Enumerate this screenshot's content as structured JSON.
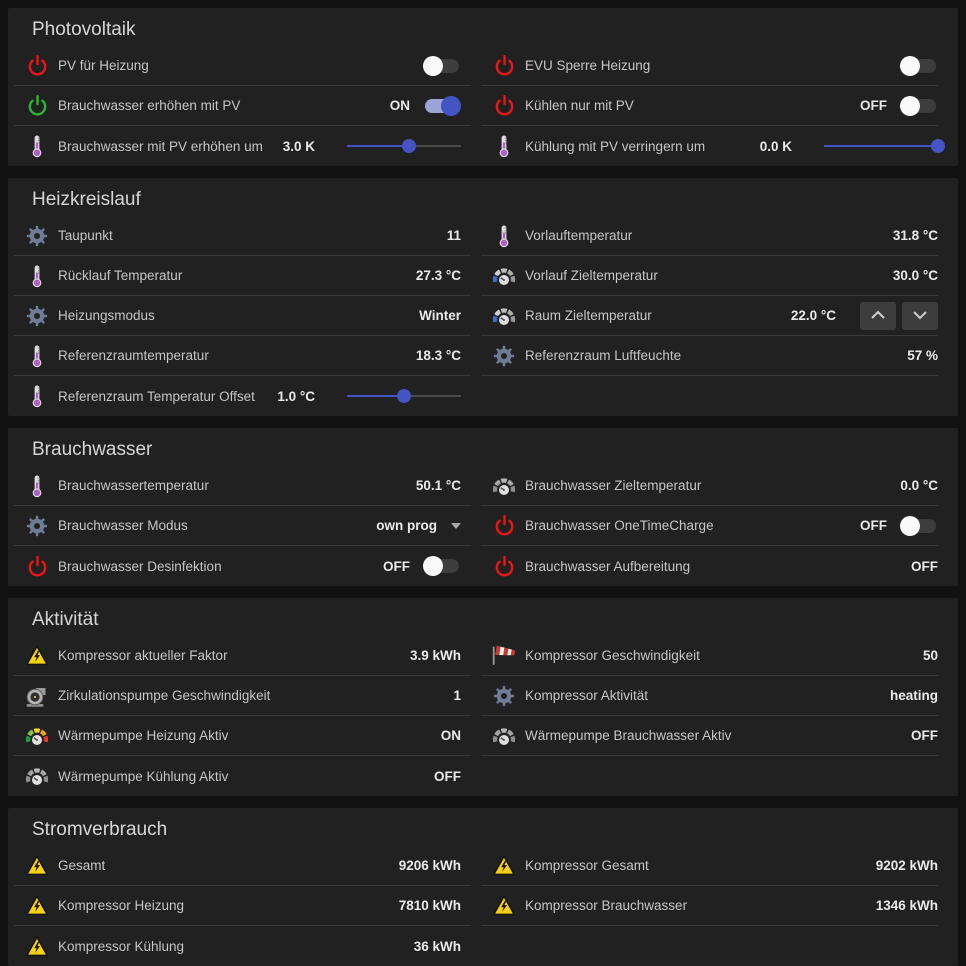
{
  "theme": {
    "page_bg": "#111111",
    "card_bg": "#212121",
    "divider": "#3a3a3a",
    "accent_blue": "#4454c3",
    "toggle_on_track": "#9aa4d6",
    "power_red": "#ed1515",
    "power_green": "#2eb336",
    "warning_yellow": "#f5d017",
    "thermometer_purple": "#b05fc9",
    "gear_blue_gray": "#6e7c96"
  },
  "sections": [
    {
      "title": "Photovoltaik",
      "columns": [
        {
          "rows": [
            {
              "icon": "power-red",
              "label": "PV für Heizung",
              "type": "toggle",
              "state": "off",
              "state_label": ""
            },
            {
              "icon": "power-green",
              "label": "Brauchwasser erhöhen mit PV",
              "type": "toggle",
              "state": "on",
              "state_label": "ON"
            },
            {
              "icon": "thermometer",
              "label": "Brauchwasser mit PV erhöhen um",
              "type": "slider",
              "value": "3.0 K",
              "slider_pos": 0.54
            }
          ]
        },
        {
          "rows": [
            {
              "icon": "power-red",
              "label": "EVU Sperre Heizung",
              "type": "toggle",
              "state": "off",
              "state_label": ""
            },
            {
              "icon": "power-red",
              "label": "Kühlen nur mit PV",
              "type": "toggle",
              "state": "off",
              "state_label": "OFF"
            },
            {
              "icon": "thermometer",
              "label": "Kühlung mit PV verringern um",
              "type": "slider",
              "value": "0.0 K",
              "slider_pos": 1
            }
          ]
        }
      ]
    },
    {
      "title": "Heizkreislauf",
      "columns": [
        {
          "rows": [
            {
              "icon": "gear",
              "label": "Taupunkt",
              "type": "value",
              "value": "11"
            },
            {
              "icon": "thermometer",
              "label": "Rücklauf Temperatur",
              "type": "value",
              "value": "27.3 °C"
            },
            {
              "icon": "gear",
              "label": "Heizungsmodus",
              "type": "value",
              "value": "Winter"
            },
            {
              "icon": "thermometer",
              "label": "Referenzraumtemperatur",
              "type": "value",
              "value": "18.3 °C"
            },
            {
              "icon": "thermometer",
              "label": "Referenzraum Temperatur Offset",
              "type": "slider",
              "value": "1.0 °C",
              "slider_pos": 0.5
            }
          ]
        },
        {
          "rows": [
            {
              "icon": "thermometer",
              "label": "Vorlauftemperatur",
              "type": "value",
              "value": "31.8 °C"
            },
            {
              "icon": "gauge-blue",
              "label": "Vorlauf Zieltemperatur",
              "type": "value",
              "value": "30.0 °C"
            },
            {
              "icon": "gauge-blue",
              "label": "Raum Zieltemperatur",
              "type": "stepper",
              "value": "22.0 °C"
            },
            {
              "icon": "gear",
              "label": "Referenzraum Luftfeuchte",
              "type": "value",
              "value": "57 %"
            }
          ]
        }
      ]
    },
    {
      "title": "Brauchwasser",
      "columns": [
        {
          "rows": [
            {
              "icon": "thermometer",
              "label": "Brauchwassertemperatur",
              "type": "value",
              "value": "50.1 °C"
            },
            {
              "icon": "gear",
              "label": "Brauchwasser Modus",
              "type": "select",
              "value": "own prog"
            },
            {
              "icon": "power-red",
              "label": "Brauchwasser Desinfektion",
              "type": "toggle",
              "state": "off",
              "state_label": "OFF"
            }
          ]
        },
        {
          "rows": [
            {
              "icon": "gauge-gray",
              "label": "Brauchwasser Zieltemperatur",
              "type": "value",
              "value": "0.0 °C"
            },
            {
              "icon": "power-red",
              "label": "Brauchwasser OneTimeCharge",
              "type": "toggle",
              "state": "off",
              "state_label": "OFF"
            },
            {
              "icon": "power-red",
              "label": "Brauchwasser Aufbereitung",
              "type": "value",
              "value": "OFF"
            }
          ]
        }
      ]
    },
    {
      "title": "Aktivität",
      "columns": [
        {
          "rows": [
            {
              "icon": "warning",
              "label": "Kompressor aktueller Faktor",
              "type": "value",
              "value": "3.9 kWh"
            },
            {
              "icon": "pump",
              "label": "Zirkulationspumpe Geschwindigkeit",
              "type": "value",
              "value": "1"
            },
            {
              "icon": "gauge-color",
              "label": "Wärmepumpe Heizung Aktiv",
              "type": "value",
              "value": "ON"
            },
            {
              "icon": "gauge-gray",
              "label": "Wärmepumpe Kühlung Aktiv",
              "type": "value",
              "value": "OFF"
            }
          ]
        },
        {
          "rows": [
            {
              "icon": "windsock",
              "label": "Kompressor Geschwindigkeit",
              "type": "value",
              "value": "50"
            },
            {
              "icon": "gear",
              "label": "Kompressor Aktivität",
              "type": "value",
              "value": "heating"
            },
            {
              "icon": "gauge-gray",
              "label": "Wärmepumpe Brauchwasser Aktiv",
              "type": "value",
              "value": "OFF"
            }
          ]
        }
      ]
    },
    {
      "title": "Stromverbrauch",
      "columns": [
        {
          "rows": [
            {
              "icon": "warning",
              "label": "Gesamt",
              "type": "value",
              "value": "9206 kWh"
            },
            {
              "icon": "warning",
              "label": "Kompressor Heizung",
              "type": "value",
              "value": "7810 kWh"
            },
            {
              "icon": "warning",
              "label": "Kompressor Kühlung",
              "type": "value",
              "value": "36 kWh"
            }
          ]
        },
        {
          "rows": [
            {
              "icon": "warning",
              "label": "Kompressor Gesamt",
              "type": "value",
              "value": "9202 kWh"
            },
            {
              "icon": "warning",
              "label": "Kompressor Brauchwasser",
              "type": "value",
              "value": "1346 kWh"
            }
          ]
        }
      ]
    }
  ]
}
